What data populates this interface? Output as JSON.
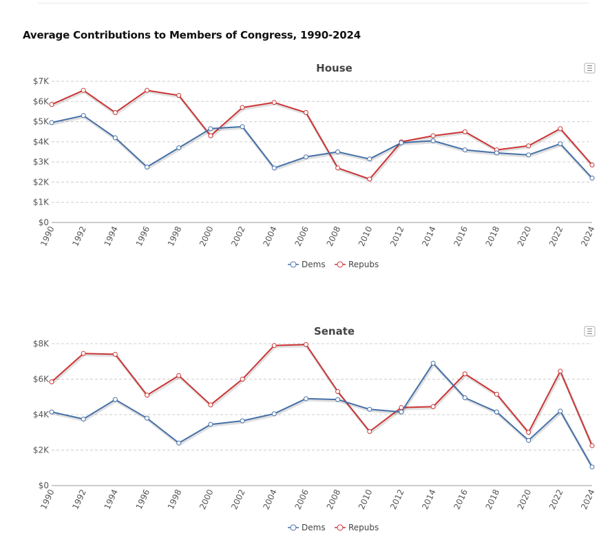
{
  "page": {
    "title": "Average Contributions to Members of Congress, 1990-2024"
  },
  "colors": {
    "dems": "#4470a8",
    "repubs": "#cc3333",
    "grid": "#cccccc",
    "axis": "#999999"
  },
  "icons": {
    "menu": "hamburger-menu-icon"
  },
  "chart_data": [
    {
      "type": "line",
      "title": "House",
      "xlabel": "",
      "ylabel": "",
      "x": [
        "1990",
        "1992",
        "1994",
        "1996",
        "1998",
        "2000",
        "2002",
        "2004",
        "2006",
        "2008",
        "2010",
        "2012",
        "2014",
        "2016",
        "2018",
        "2020",
        "2022",
        "2024"
      ],
      "y_ticks": [
        "$0",
        "$1K",
        "$2K",
        "$3K",
        "$4K",
        "$5K",
        "$6K",
        "$7K"
      ],
      "ylim": [
        0,
        7000
      ],
      "grid": true,
      "legend": "bottom-center",
      "series": [
        {
          "name": "Dems",
          "values": [
            4950,
            5300,
            4200,
            2750,
            3700,
            4650,
            4750,
            2700,
            3250,
            3500,
            3150,
            3950,
            4050,
            3600,
            3450,
            3350,
            3900,
            2200
          ]
        },
        {
          "name": "Repubs",
          "values": [
            5850,
            6550,
            5450,
            6550,
            6300,
            4300,
            5700,
            5950,
            5450,
            2700,
            2150,
            4000,
            4300,
            4500,
            3600,
            3800,
            4650,
            2850
          ]
        }
      ]
    },
    {
      "type": "line",
      "title": "Senate",
      "xlabel": "",
      "ylabel": "",
      "x": [
        "1990",
        "1992",
        "1994",
        "1996",
        "1998",
        "2000",
        "2002",
        "2004",
        "2006",
        "2008",
        "2010",
        "2012",
        "2014",
        "2016",
        "2018",
        "2020",
        "2022",
        "2024"
      ],
      "y_ticks": [
        "$0",
        "$2K",
        "$4K",
        "$6K",
        "$8K"
      ],
      "ylim": [
        0,
        8000
      ],
      "grid": true,
      "legend": "bottom-center",
      "series": [
        {
          "name": "Dems",
          "values": [
            4150,
            3750,
            4850,
            3800,
            2400,
            3450,
            3650,
            4050,
            4900,
            4850,
            4300,
            4150,
            6900,
            4950,
            4150,
            2550,
            4200,
            1050
          ]
        },
        {
          "name": "Repubs",
          "values": [
            5850,
            7450,
            7400,
            5100,
            6200,
            4550,
            6000,
            7900,
            7950,
            5300,
            3050,
            4400,
            4450,
            6300,
            5150,
            3000,
            6450,
            2250
          ]
        }
      ]
    }
  ]
}
